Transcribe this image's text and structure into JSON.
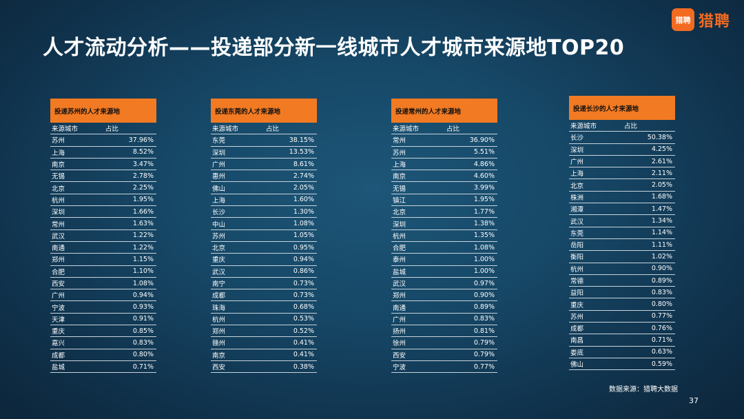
{
  "brand": {
    "logo_mark": "猎聘",
    "name": "猎聘",
    "color": "#f26b21"
  },
  "title": "人才流动分析——投递部分新一线城市人才城市来源地TOP20",
  "tables": [
    {
      "heading": "投递苏州的人才来源地",
      "col_city": "来源城市",
      "col_share": "占比",
      "rows": [
        {
          "city": "苏州",
          "share": "37.96%"
        },
        {
          "city": "上海",
          "share": "8.52%"
        },
        {
          "city": "南京",
          "share": "3.47%"
        },
        {
          "city": "无锡",
          "share": "2.78%"
        },
        {
          "city": "北京",
          "share": "2.25%"
        },
        {
          "city": "杭州",
          "share": "1.95%"
        },
        {
          "city": "深圳",
          "share": "1.66%"
        },
        {
          "city": "常州",
          "share": "1.63%"
        },
        {
          "city": "武汉",
          "share": "1.22%"
        },
        {
          "city": "南通",
          "share": "1.22%"
        },
        {
          "city": "郑州",
          "share": "1.15%"
        },
        {
          "city": "合肥",
          "share": "1.10%"
        },
        {
          "city": "西安",
          "share": "1.08%"
        },
        {
          "city": "广州",
          "share": "0.94%"
        },
        {
          "city": "宁波",
          "share": "0.93%"
        },
        {
          "city": "天津",
          "share": "0.91%"
        },
        {
          "city": "重庆",
          "share": "0.85%"
        },
        {
          "city": "嘉兴",
          "share": "0.83%"
        },
        {
          "city": "成都",
          "share": "0.80%"
        },
        {
          "city": "盐城",
          "share": "0.71%"
        }
      ]
    },
    {
      "heading": "投递东莞的人才来源地",
      "col_city": "来源城市",
      "col_share": "占比",
      "rows": [
        {
          "city": "东莞",
          "share": "38.15%"
        },
        {
          "city": "深圳",
          "share": "13.53%"
        },
        {
          "city": "广州",
          "share": "8.61%"
        },
        {
          "city": "惠州",
          "share": "2.74%"
        },
        {
          "city": "佛山",
          "share": "2.05%"
        },
        {
          "city": "上海",
          "share": "1.60%"
        },
        {
          "city": "长沙",
          "share": "1.30%"
        },
        {
          "city": "中山",
          "share": "1.08%"
        },
        {
          "city": "苏州",
          "share": "1.05%"
        },
        {
          "city": "北京",
          "share": "0.95%"
        },
        {
          "city": "重庆",
          "share": "0.94%"
        },
        {
          "city": "武汉",
          "share": "0.86%"
        },
        {
          "city": "南宁",
          "share": "0.73%"
        },
        {
          "city": "成都",
          "share": "0.73%"
        },
        {
          "city": "珠海",
          "share": "0.68%"
        },
        {
          "city": "杭州",
          "share": "0.53%"
        },
        {
          "city": "郑州",
          "share": "0.52%"
        },
        {
          "city": "赣州",
          "share": "0.41%"
        },
        {
          "city": "南京",
          "share": "0.41%"
        },
        {
          "city": "西安",
          "share": "0.38%"
        }
      ]
    },
    {
      "heading": "投递常州的人才来源地",
      "col_city": "来源城市",
      "col_share": "占比",
      "rows": [
        {
          "city": "常州",
          "share": "36.90%"
        },
        {
          "city": "苏州",
          "share": "5.51%"
        },
        {
          "city": "上海",
          "share": "4.86%"
        },
        {
          "city": "南京",
          "share": "4.60%"
        },
        {
          "city": "无锡",
          "share": "3.99%"
        },
        {
          "city": "镇江",
          "share": "1.95%"
        },
        {
          "city": "北京",
          "share": "1.77%"
        },
        {
          "city": "深圳",
          "share": "1.38%"
        },
        {
          "city": "杭州",
          "share": "1.35%"
        },
        {
          "city": "合肥",
          "share": "1.08%"
        },
        {
          "city": "泰州",
          "share": "1.00%"
        },
        {
          "city": "盐城",
          "share": "1.00%"
        },
        {
          "city": "武汉",
          "share": "0.97%"
        },
        {
          "city": "郑州",
          "share": "0.90%"
        },
        {
          "city": "南通",
          "share": "0.89%"
        },
        {
          "city": "广州",
          "share": "0.83%"
        },
        {
          "city": "扬州",
          "share": "0.81%"
        },
        {
          "city": "徐州",
          "share": "0.79%"
        },
        {
          "city": "西安",
          "share": "0.79%"
        },
        {
          "city": "宁波",
          "share": "0.77%"
        }
      ]
    },
    {
      "heading": "投递长沙的人才来源地",
      "col_city": "来源城市",
      "col_share": "占比",
      "rows": [
        {
          "city": "长沙",
          "share": "50.38%"
        },
        {
          "city": "深圳",
          "share": "4.25%"
        },
        {
          "city": "广州",
          "share": "2.61%"
        },
        {
          "city": "上海",
          "share": "2.11%"
        },
        {
          "city": "北京",
          "share": "2.05%"
        },
        {
          "city": "株洲",
          "share": "1.68%"
        },
        {
          "city": "湘潭",
          "share": "1.47%"
        },
        {
          "city": "武汉",
          "share": "1.34%"
        },
        {
          "city": "东莞",
          "share": "1.14%"
        },
        {
          "city": "岳阳",
          "share": "1.11%"
        },
        {
          "city": "衡阳",
          "share": "1.02%"
        },
        {
          "city": "杭州",
          "share": "0.90%"
        },
        {
          "city": "常德",
          "share": "0.89%"
        },
        {
          "city": "益阳",
          "share": "0.83%"
        },
        {
          "city": "重庆",
          "share": "0.80%"
        },
        {
          "city": "苏州",
          "share": "0.77%"
        },
        {
          "city": "成都",
          "share": "0.76%"
        },
        {
          "city": "南昌",
          "share": "0.71%"
        },
        {
          "city": "娄底",
          "share": "0.63%"
        },
        {
          "city": "佛山",
          "share": "0.59%"
        }
      ]
    }
  ],
  "footer": {
    "source": "数据来源：猎聘大数据",
    "page": "37"
  }
}
